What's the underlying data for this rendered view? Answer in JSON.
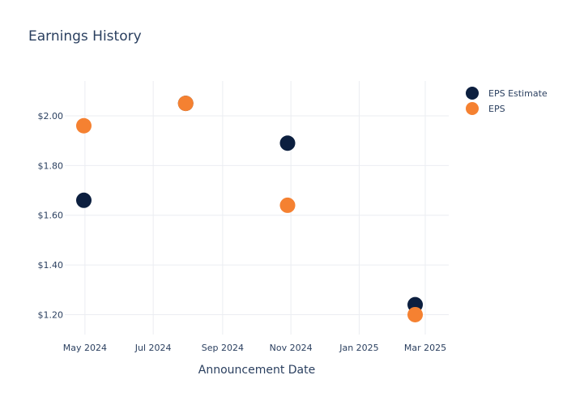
{
  "chart_data": {
    "type": "scatter",
    "title": "Earnings History",
    "xlabel": "Announcement Date",
    "ylabel": "",
    "x_axis": {
      "type": "date",
      "range": [
        "2024-04-13",
        "2025-03-22"
      ],
      "ticks": [
        {
          "date": "2024-05-01",
          "label": "May 2024"
        },
        {
          "date": "2024-07-01",
          "label": "Jul 2024"
        },
        {
          "date": "2024-09-01",
          "label": "Sep 2024"
        },
        {
          "date": "2024-11-01",
          "label": "Nov 2024"
        },
        {
          "date": "2025-01-01",
          "label": "Jan 2025"
        },
        {
          "date": "2025-03-01",
          "label": "Mar 2025"
        }
      ]
    },
    "y_axis": {
      "range": [
        1.12,
        2.14
      ],
      "ticks": [
        {
          "value": 1.2,
          "label": "$1.20"
        },
        {
          "value": 1.4,
          "label": "$1.40"
        },
        {
          "value": 1.6,
          "label": "$1.60"
        },
        {
          "value": 1.8,
          "label": "$1.80"
        },
        {
          "value": 2.0,
          "label": "$2.00"
        }
      ]
    },
    "grid": true,
    "legend_position": "top-right",
    "series": [
      {
        "name": "EPS Estimate",
        "color": "#0c1f3f",
        "points": [
          {
            "x": "2024-04-30",
            "y": 1.66
          },
          {
            "x": "2024-07-30",
            "y": 2.05
          },
          {
            "x": "2024-10-29",
            "y": 1.89
          },
          {
            "x": "2025-02-20",
            "y": 1.24
          }
        ]
      },
      {
        "name": "EPS",
        "color": "#f58131",
        "points": [
          {
            "x": "2024-04-30",
            "y": 1.96
          },
          {
            "x": "2024-07-30",
            "y": 2.05
          },
          {
            "x": "2024-10-29",
            "y": 1.64
          },
          {
            "x": "2025-02-20",
            "y": 1.2
          }
        ]
      }
    ]
  }
}
